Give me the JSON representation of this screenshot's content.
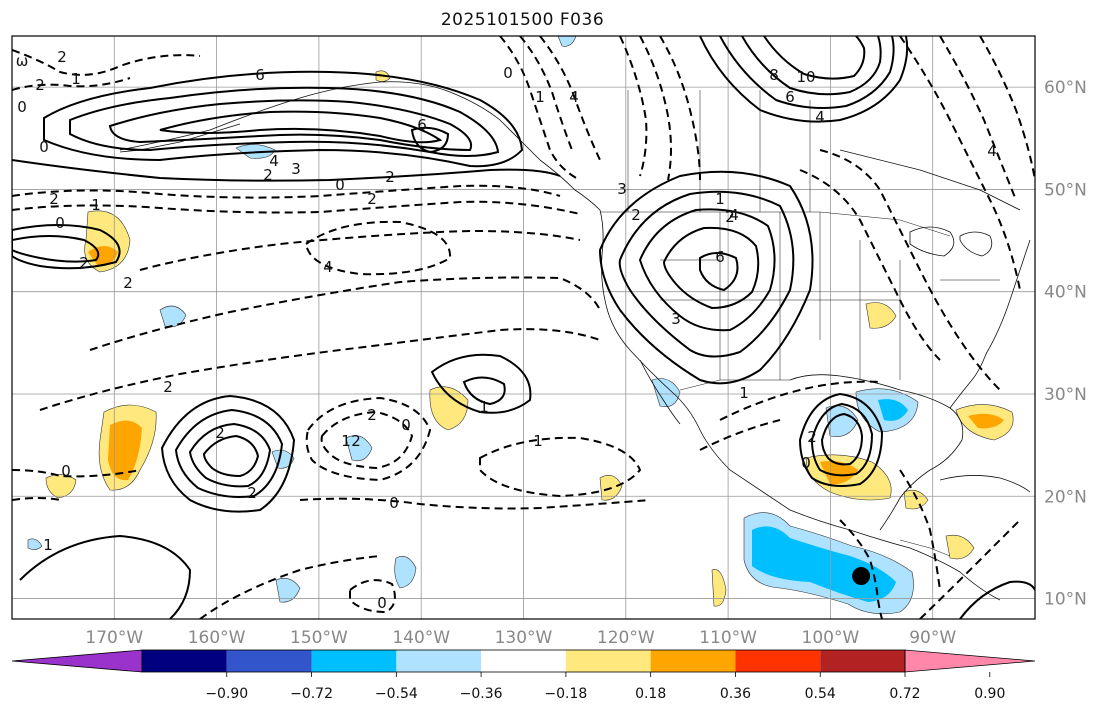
{
  "title": "2025101500 F036",
  "map": {
    "lon_range": [
      -180,
      -80
    ],
    "lat_range": [
      8,
      65
    ],
    "lon_ticks": [
      {
        "value": -170,
        "label": "170°W"
      },
      {
        "value": -160,
        "label": "160°W"
      },
      {
        "value": -150,
        "label": "150°W"
      },
      {
        "value": -140,
        "label": "140°W"
      },
      {
        "value": -130,
        "label": "130°W"
      },
      {
        "value": -120,
        "label": "120°W"
      },
      {
        "value": -110,
        "label": "110°W"
      },
      {
        "value": -100,
        "label": "100°W"
      },
      {
        "value": -90,
        "label": "90°W"
      }
    ],
    "lat_ticks": [
      {
        "value": 60,
        "label": "60°N"
      },
      {
        "value": 50,
        "label": "50°N"
      },
      {
        "value": 40,
        "label": "40°N"
      },
      {
        "value": 30,
        "label": "30°N"
      },
      {
        "value": 20,
        "label": "20°N"
      },
      {
        "value": 10,
        "label": "10°N"
      }
    ],
    "gridlines": true,
    "marker": {
      "lon": -97,
      "lat": 12.2,
      "color": "#000000"
    }
  },
  "colorbar": {
    "colors": [
      "#9933cc",
      "#000080",
      "#3355cc",
      "#00bfff",
      "#aee2ff",
      "#ffffff",
      "#ffe97f",
      "#ffa500",
      "#ff3300",
      "#b22222",
      "#ff88aa"
    ],
    "tick_labels": [
      "−0.90",
      "−0.72",
      "−0.54",
      "−0.36",
      "−0.18",
      "0.18",
      "0.36",
      "0.54",
      "0.72",
      "0.90"
    ]
  },
  "contour_labels": [
    "ω",
    "2",
    "2",
    "1",
    "0",
    "0",
    "2",
    "1",
    "0",
    "2",
    "2",
    "6",
    "6",
    "4",
    "3",
    "2",
    "0",
    "2",
    "2",
    "4",
    "0",
    "1",
    "4",
    "8",
    "10",
    "6",
    "4",
    "3",
    "2",
    "1",
    "2",
    "4",
    "6",
    "3",
    "1",
    "2",
    "1",
    "2",
    "2",
    "2",
    "0",
    "2",
    "1",
    "1",
    "0",
    "1",
    "0",
    "0",
    "2",
    "0",
    "4"
  ]
}
